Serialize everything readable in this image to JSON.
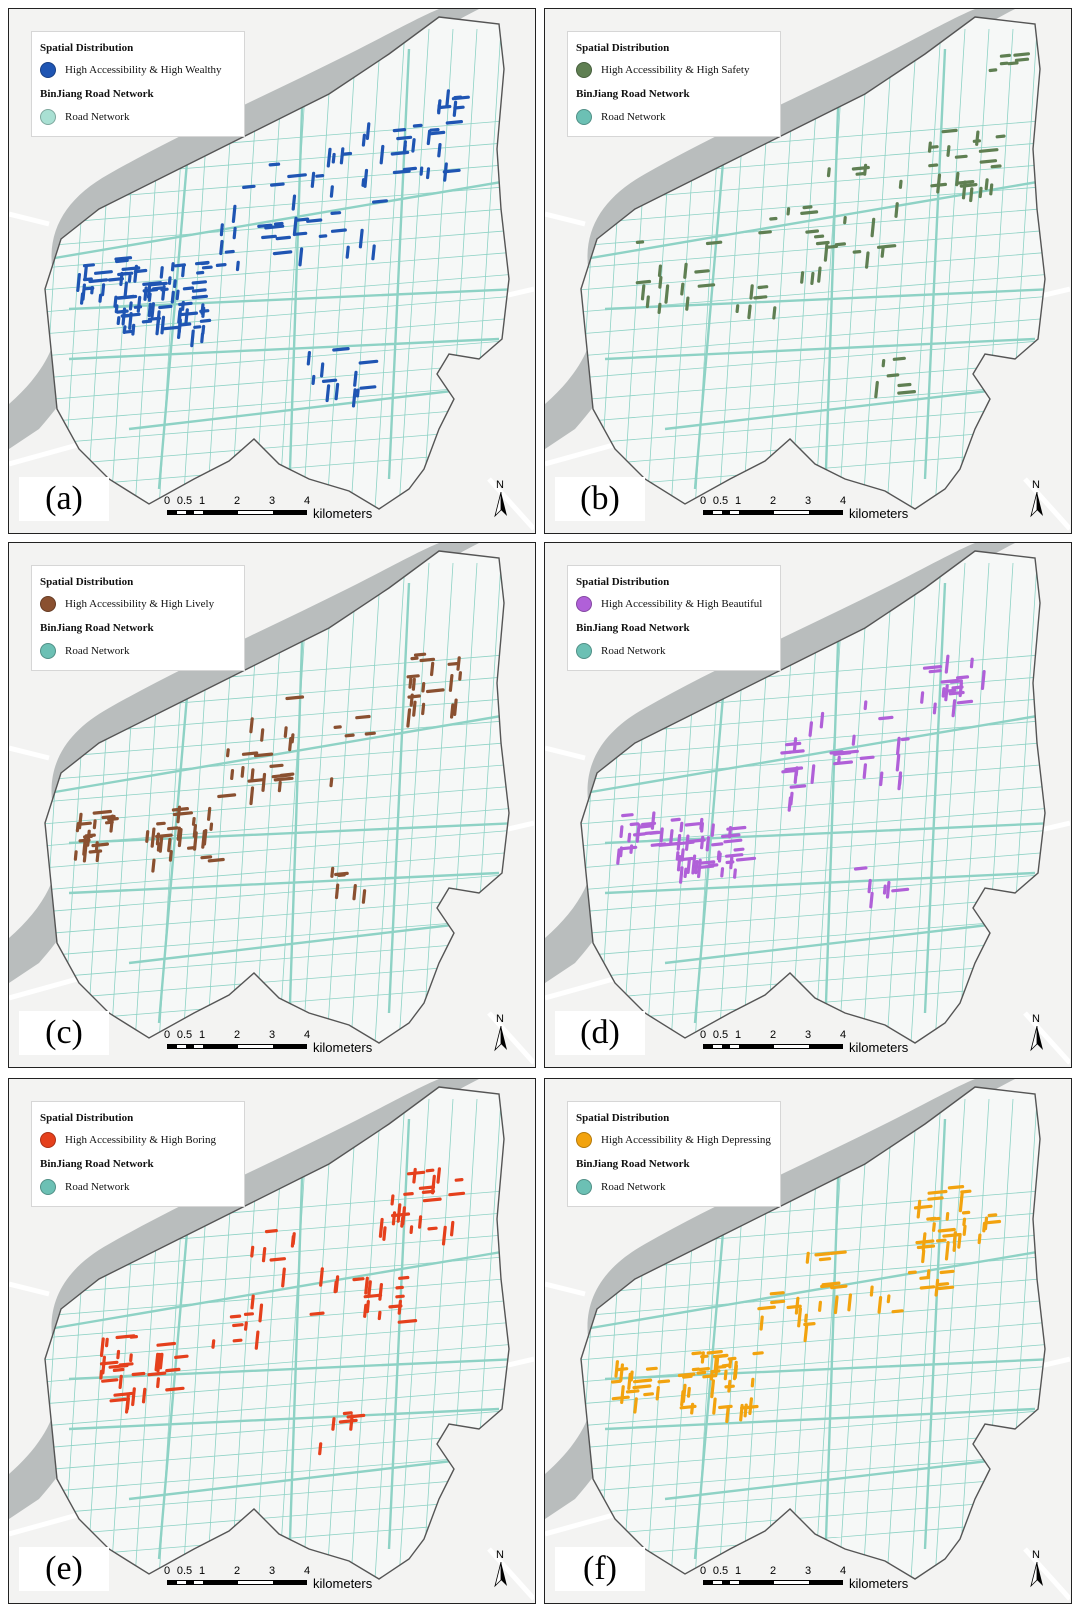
{
  "legend_title": "Spatial Distribution",
  "network_title": "BinJiang Road Network",
  "road_label": "Road Network",
  "scale": {
    "ticks": [
      "0",
      "0.5",
      "1",
      "2",
      "3",
      "4"
    ],
    "unit": "kilometers"
  },
  "north_label": "N",
  "colors": {
    "road": "#8ed2c5",
    "river": "#b9bdbd",
    "land": "#f3f3f2",
    "boundary": "#555555"
  },
  "panels": [
    {
      "tag": "(a)",
      "label": "High Accessibility & High Wealthy",
      "color": "#1f55b3",
      "road_swatch": "#a9e0d3"
    },
    {
      "tag": "(b)",
      "label": "High Accessibility & High Safety",
      "color": "#5f7f52",
      "road_swatch": "#6cc0b4"
    },
    {
      "tag": "(c)",
      "label": "High Accessibility & High Lively",
      "color": "#8a5030",
      "road_swatch": "#6cc0b4"
    },
    {
      "tag": "(d)",
      "label": "High Accessibility & High Beautiful",
      "color": "#b060d8",
      "road_swatch": "#6cc0b4"
    },
    {
      "tag": "(e)",
      "label": "High Accessibility & High Boring",
      "color": "#e5401c",
      "road_swatch": "#6cc0b4"
    },
    {
      "tag": "(f)",
      "label": "High Accessibility & High Depressing",
      "color": "#f2a30f",
      "road_swatch": "#6cc0b4"
    }
  ]
}
